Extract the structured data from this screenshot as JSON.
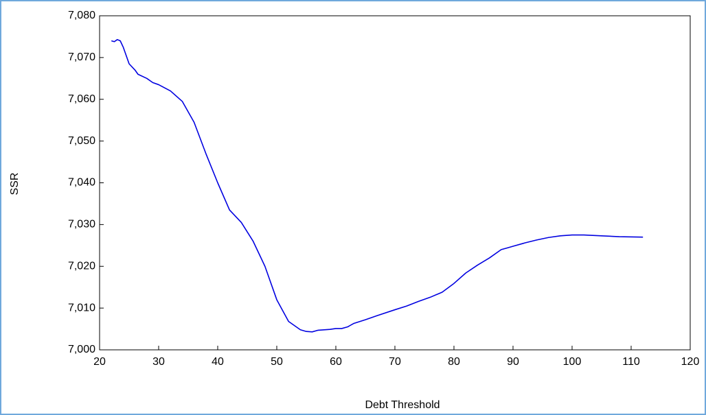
{
  "chart_data": {
    "type": "line",
    "xlabel": "Debt Threshold",
    "ylabel": "SSR",
    "x": [
      22,
      22.5,
      23,
      23.5,
      24,
      25,
      26,
      26.5,
      28,
      29,
      30,
      32,
      34,
      36,
      38,
      40,
      42,
      44,
      46,
      48,
      50,
      52,
      54,
      55,
      56,
      57,
      59,
      60,
      61,
      62,
      63,
      65,
      67,
      70,
      72,
      74,
      76,
      78,
      80,
      82,
      84,
      86,
      88,
      89,
      90,
      92,
      94,
      96,
      98,
      100,
      102,
      105,
      108,
      112
    ],
    "values": [
      7074,
      7073.8,
      7074.3,
      7074,
      7072.5,
      7068.5,
      7067,
      7066,
      7065,
      7064,
      7063.5,
      7062,
      7059.5,
      7054.5,
      7047,
      7040,
      7033.5,
      7030.5,
      7026,
      7020,
      7012,
      7006.8,
      7004.8,
      7004.4,
      7004.3,
      7004.7,
      7004.9,
      7005.1,
      7005.1,
      7005.5,
      7006.3,
      7007.2,
      7008.2,
      7009.6,
      7010.5,
      7011.6,
      7012.6,
      7013.8,
      7015.9,
      7018.4,
      7020.3,
      7022,
      7024,
      7024.4,
      7024.8,
      7025.6,
      7026.3,
      7026.9,
      7027.3,
      7027.5,
      7027.5,
      7027.3,
      7027.1,
      7027
    ],
    "color": "#0000e0",
    "xlim": [
      20,
      120
    ],
    "xticks": [
      20,
      30,
      40,
      50,
      60,
      70,
      80,
      90,
      100,
      110,
      120
    ],
    "ylim": [
      7000,
      7080
    ],
    "yticks": [
      {
        "value": 7000,
        "label": "7,000"
      },
      {
        "value": 7010,
        "label": "7,010"
      },
      {
        "value": 7020,
        "label": "7,020"
      },
      {
        "value": 7030,
        "label": "7,030"
      },
      {
        "value": 7040,
        "label": "7,040"
      },
      {
        "value": 7050,
        "label": "7,050"
      },
      {
        "value": 7060,
        "label": "7,060"
      },
      {
        "value": 7070,
        "label": "7,070"
      },
      {
        "value": 7080,
        "label": "7,080"
      }
    ]
  }
}
